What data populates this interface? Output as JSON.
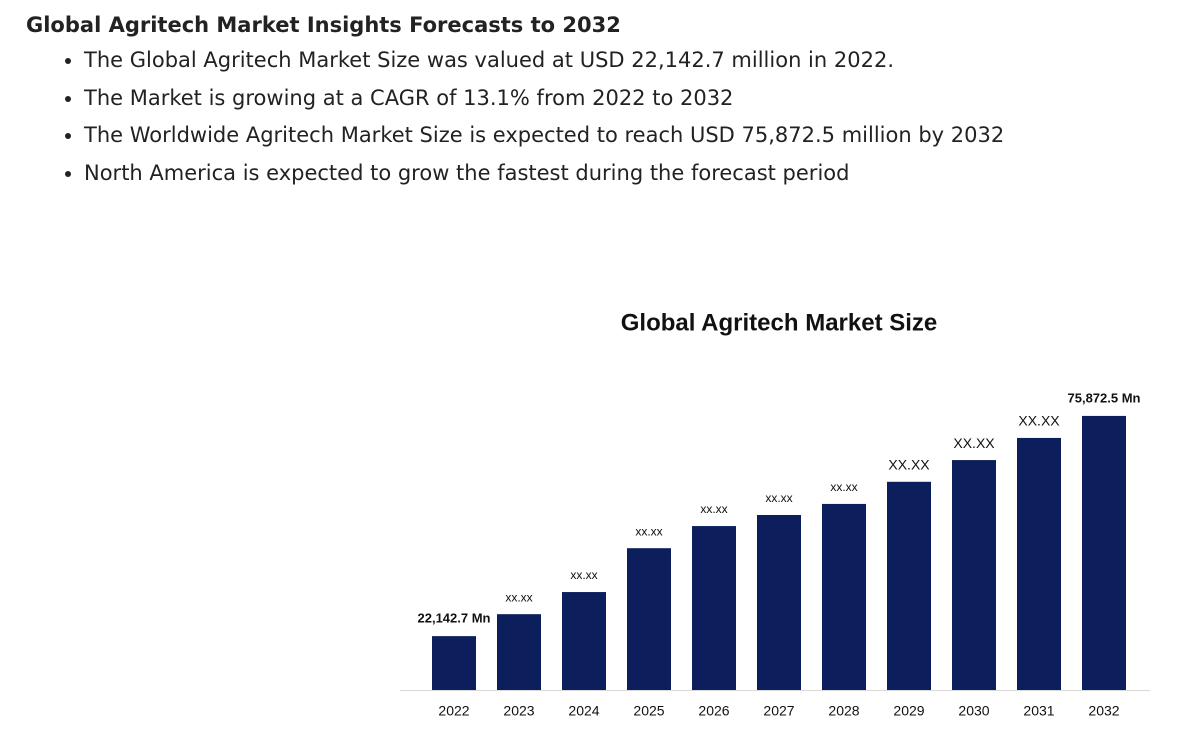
{
  "header": {
    "title": "Global Agritech Market Insights Forecasts to 2032"
  },
  "bullets": [
    "The Global Agritech Market Size was valued at USD 22,142.7 million in 2022.",
    "The Market is growing at a CAGR of 13.1% from 2022 to 2032",
    "The Worldwide Agritech Market Size is expected to reach USD 75,872.5 million by 2032",
    "North America is expected to grow the fastest during the forecast period"
  ],
  "chart_data": {
    "type": "bar",
    "title": "Global Agritech Market Size",
    "categories": [
      "2022",
      "2023",
      "2024",
      "2025",
      "2026",
      "2027",
      "2028",
      "2029",
      "2030",
      "2031",
      "2032"
    ],
    "values": [
      22142.7,
      27500,
      32900,
      43600,
      49000,
      51700,
      54400,
      59800,
      65100,
      70500,
      75872.5
    ],
    "value_labels": [
      "22,142.7 Mn",
      "xx.xx",
      "xx.xx",
      "xx.xx",
      "xx.xx",
      "xx.xx",
      "xx.xx",
      "XX.XX",
      "XX.XX",
      "XX.XX",
      "75,872.5 Mn"
    ],
    "color": "#0c1f5c",
    "ylim": [
      9000,
      80000
    ]
  }
}
